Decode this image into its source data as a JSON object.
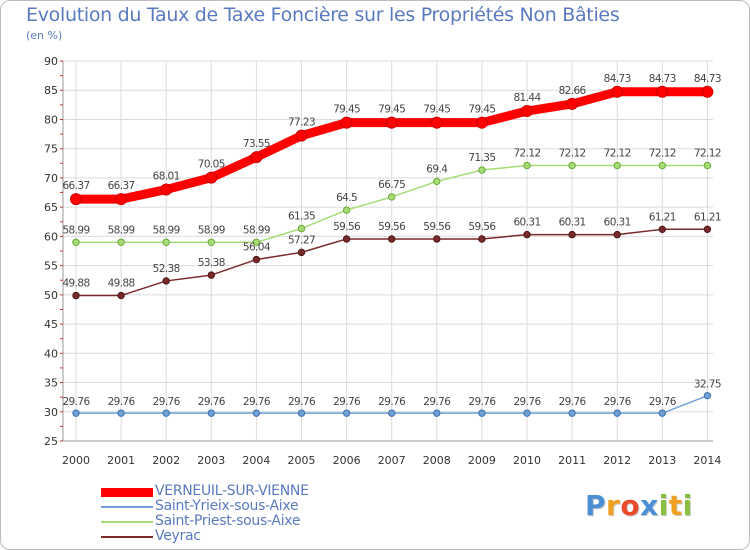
{
  "title": "Evolution du Taux de Taxe Foncière sur les Propriétés Non Bâties",
  "subtitle": "(en %)",
  "chart_data": {
    "type": "line",
    "title": "Evolution du Taux de Taxe Foncière sur les Propriétés Non Bâties",
    "ylabel": "(en %)",
    "xlabel": "",
    "ylim": [
      25,
      90
    ],
    "yticks": [
      25,
      30,
      35,
      40,
      45,
      50,
      55,
      60,
      65,
      70,
      75,
      80,
      85,
      90
    ],
    "categories": [
      "2000",
      "2001",
      "2002",
      "2003",
      "2004",
      "2005",
      "2006",
      "2007",
      "2008",
      "2009",
      "2010",
      "2011",
      "2012",
      "2013",
      "2014"
    ],
    "grid": true,
    "series": [
      {
        "name": "VERNEUIL-SUR-VIENNE",
        "color": "#ff0000",
        "values": [
          66.37,
          66.37,
          68.01,
          70.05,
          73.55,
          77.23,
          79.45,
          79.45,
          79.45,
          79.45,
          81.44,
          82.66,
          84.73,
          84.73,
          84.73
        ]
      },
      {
        "name": "Saint-Yrieix-sous-Aixe",
        "color": "#6fa0d8",
        "values": [
          29.76,
          29.76,
          29.76,
          29.76,
          29.76,
          29.76,
          29.76,
          29.76,
          29.76,
          29.76,
          29.76,
          29.76,
          29.76,
          29.76,
          32.75
        ]
      },
      {
        "name": "Saint-Priest-sous-Aixe",
        "color": "#a6dc74",
        "values": [
          58.99,
          58.99,
          58.99,
          58.99,
          58.99,
          61.35,
          64.5,
          66.75,
          69.4,
          71.35,
          72.12,
          72.12,
          72.12,
          72.12,
          72.12
        ]
      },
      {
        "name": "Veyrac",
        "color": "#7a2a2a",
        "values": [
          49.88,
          49.88,
          52.38,
          53.38,
          56.04,
          57.27,
          59.56,
          59.56,
          59.56,
          59.56,
          60.31,
          60.31,
          60.31,
          61.21,
          61.21
        ]
      }
    ],
    "labels": {
      "VERNEUIL-SUR-VIENNE": [
        "66.37",
        "66.37",
        "68.01",
        "70.05",
        "73.55",
        "77.23",
        "79.45",
        "79.45",
        "79.45",
        "79.45",
        "81.44",
        "82.66",
        "84.73",
        "84.73",
        "84.73"
      ],
      "Saint-Yrieix-sous-Aixe": [
        "29.76",
        "29.76",
        "29.76",
        "29.76",
        "29.76",
        "29.76",
        "29.76",
        "29.76",
        "29.76",
        "29.76",
        "29.76",
        "29.76",
        "29.76",
        "29.76",
        "32.75"
      ],
      "Saint-Priest-sous-Aixe": [
        "58.99",
        "58.99",
        "58.99",
        "58.99",
        "58.99",
        "61.35",
        "64.5",
        "66.75",
        "69.4",
        "71.35",
        "72.12",
        "72.12",
        "72.12",
        "72.12",
        "72.12"
      ],
      "Veyrac": [
        "49.88",
        "49.88",
        "52.38",
        "53.38",
        "56.04",
        "57.27",
        "59.56",
        "59.56",
        "59.56",
        "59.56",
        "60.31",
        "60.31",
        "60.31",
        "61.21",
        "61.21"
      ]
    }
  },
  "legend": [
    {
      "label": "VERNEUIL-SUR-VIENNE",
      "color": "#ff0000"
    },
    {
      "label": "Saint-Yrieix-sous-Aixe",
      "color": "#6fa0d8"
    },
    {
      "label": "Saint-Priest-sous-Aixe",
      "color": "#a6dc74"
    },
    {
      "label": "Veyrac",
      "color": "#7a2a2a"
    }
  ],
  "logo": {
    "text": "Proxiti",
    "letters": [
      {
        "char": "P",
        "color": "#4a8fd6"
      },
      {
        "char": "r",
        "color": "#f0a020"
      },
      {
        "char": "o",
        "color": "#e84a2a"
      },
      {
        "char": "x",
        "color": "#4a8fd6"
      },
      {
        "char": "i",
        "color": "#8ac040"
      },
      {
        "char": "t",
        "color": "#f0a020"
      },
      {
        "char": "i",
        "color": "#8ac040"
      }
    ]
  }
}
